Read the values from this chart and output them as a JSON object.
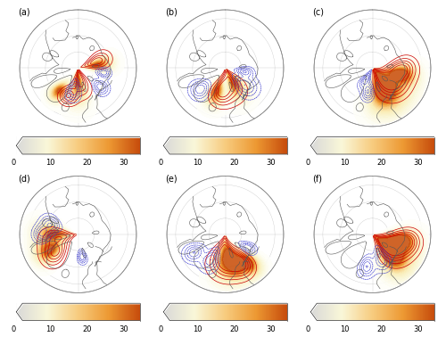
{
  "panel_labels": [
    "(a)",
    "(b)",
    "(c)",
    "(d)",
    "(e)",
    "(f)"
  ],
  "colorbar_ticks": [
    0,
    10,
    20,
    30
  ],
  "contour_color_positive": "#cc0000",
  "contour_color_negative": "#3333cc",
  "background_color": "#ffffff",
  "fig_width": 5.0,
  "fig_height": 3.87,
  "dpi": 100,
  "label_fontsize": 7,
  "tick_fontsize": 6
}
